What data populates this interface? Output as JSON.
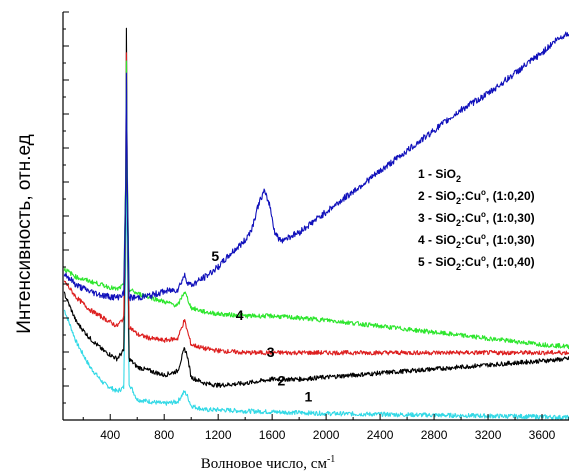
{
  "chart_data": {
    "type": "line",
    "xlabel": "Волновое число, см",
    "xlabel_sup": "-1",
    "ylabel": "Интенсивность, отн.ед",
    "xlim": [
      50,
      3800
    ],
    "ylim": [
      0,
      100
    ],
    "x_ticks": [
      400,
      800,
      1200,
      1600,
      2000,
      2400,
      2800,
      3200,
      3600
    ],
    "y_tick_count": 12,
    "grid": false,
    "legend_position": "right",
    "legend": [
      {
        "id": "1",
        "prefix": "1 - SiO",
        "sub": "2",
        "mid": "",
        "sup": "",
        "suffix": ""
      },
      {
        "id": "2",
        "prefix": "2 - SiO",
        "sub": "2",
        "mid": ":Cu",
        "sup": "o",
        "suffix": ", (1:0,20)"
      },
      {
        "id": "3",
        "prefix": "3 - SiO",
        "sub": "2",
        "mid": ":Cu",
        "sup": "o",
        "suffix": ", (1:0,30)"
      },
      {
        "id": "4",
        "prefix": "4 - SiO",
        "sub": "2",
        "mid": ":Cu",
        "sup": "o",
        "suffix": ", (1:0,30)"
      },
      {
        "id": "5",
        "prefix": "5 - SiO",
        "sub": "2",
        "mid": ":Cu",
        "sup": "o",
        "suffix": ", (1:0,40)"
      }
    ],
    "series": [
      {
        "label": "1",
        "color": "#33d9e6",
        "label_x": 1840,
        "label_y": 4.5,
        "x": [
          60,
          150,
          250,
          350,
          450,
          500,
          515,
          520,
          525,
          540,
          600,
          700,
          800,
          900,
          950,
          970,
          1000,
          1100,
          1200,
          1400,
          1600,
          1800,
          2000,
          2400,
          2800,
          3200,
          3600,
          3800
        ],
        "y": [
          27,
          19,
          13,
          9,
          7,
          8,
          40,
          80,
          48,
          9,
          5,
          4.5,
          4,
          4.5,
          7,
          6,
          3.5,
          2.5,
          2.5,
          2.2,
          2,
          1.8,
          1.6,
          1.4,
          1.2,
          1,
          0.8,
          0.6
        ]
      },
      {
        "label": "2",
        "color": "#000000",
        "label_x": 1640,
        "label_y": 8.5,
        "x": [
          60,
          150,
          250,
          350,
          450,
          500,
          515,
          520,
          525,
          540,
          600,
          700,
          800,
          900,
          950,
          970,
          1000,
          1100,
          1200,
          1400,
          1600,
          1800,
          2000,
          2400,
          2800,
          3200,
          3600,
          3800
        ],
        "y": [
          31,
          24,
          20,
          17,
          15,
          17,
          55,
          96,
          60,
          15,
          13,
          12,
          11,
          12,
          17.5,
          16,
          10.5,
          9,
          8.5,
          9,
          10,
          10,
          10.5,
          11.5,
          12.5,
          13.5,
          14.5,
          15
        ]
      },
      {
        "label": "3",
        "color": "#dd1f1f",
        "label_x": 1560,
        "label_y": 15.5,
        "x": [
          60,
          150,
          250,
          350,
          450,
          500,
          515,
          520,
          525,
          540,
          600,
          700,
          800,
          900,
          950,
          970,
          1000,
          1100,
          1200,
          1400,
          1600,
          1800,
          2000,
          2400,
          2800,
          3200,
          3600,
          3800
        ],
        "y": [
          34,
          30,
          27,
          25,
          23,
          25,
          60,
          90,
          65,
          23,
          21,
          20,
          19.5,
          20,
          24.5,
          22,
          18.5,
          17.5,
          17,
          16.5,
          16.5,
          16.5,
          16.5,
          16.5,
          16.5,
          16.5,
          16.5,
          16.5
        ]
      },
      {
        "label": "4",
        "color": "#2de62d",
        "label_x": 1330,
        "label_y": 24.5,
        "x": [
          60,
          150,
          250,
          350,
          450,
          500,
          515,
          520,
          525,
          540,
          600,
          700,
          800,
          900,
          950,
          970,
          1000,
          1100,
          1200,
          1400,
          1600,
          1800,
          2000,
          2400,
          2800,
          3200,
          3600,
          3800
        ],
        "y": [
          37,
          35,
          34,
          33,
          32,
          33,
          60,
          88,
          65,
          32,
          31,
          30,
          29,
          28,
          31.5,
          30,
          27.5,
          26.5,
          26,
          25.5,
          25.5,
          25,
          24.5,
          23,
          21.5,
          20,
          18.5,
          18
        ]
      },
      {
        "label": "5",
        "color": "#1111bb",
        "label_x": 1150,
        "label_y": 39,
        "x": [
          60,
          150,
          250,
          350,
          450,
          500,
          515,
          520,
          525,
          540,
          600,
          700,
          800,
          900,
          950,
          970,
          1000,
          1100,
          1200,
          1300,
          1400,
          1450,
          1500,
          1540,
          1580,
          1620,
          1660,
          1700,
          1800,
          2000,
          2200,
          2400,
          2600,
          2800,
          3000,
          3200,
          3400,
          3600,
          3700,
          3800
        ],
        "y": [
          36,
          33,
          31.5,
          30.5,
          30,
          31,
          58,
          85,
          62,
          30,
          30,
          30.5,
          31.5,
          32,
          35.5,
          34,
          33,
          35,
          37.5,
          41,
          44,
          47,
          53,
          56,
          53,
          46,
          44,
          44.5,
          46,
          51,
          56,
          61,
          66,
          71,
          76,
          80,
          85,
          90,
          93,
          95
        ]
      }
    ]
  }
}
